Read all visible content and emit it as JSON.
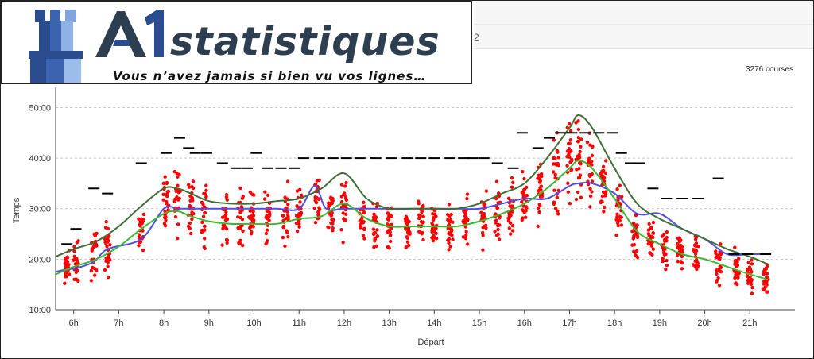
{
  "header": {
    "brand": "statistiques",
    "tagline": "Vous n’avez jamais si bien vu vos lignes…",
    "topbar_digit": "2"
  },
  "course_count": "3276 courses",
  "colors": {
    "points": "#ff0000",
    "blue_series": "#4f4fe6",
    "light_green_series": "#3cb832",
    "dark_green_series": "#3f6e33",
    "markers": "#000000",
    "logo_blue": "#2b4c8e"
  },
  "chart_data": {
    "type": "scatter",
    "xlabel": "Départ",
    "ylabel": "Temps",
    "x_ticks": [
      "6h",
      "7h",
      "8h",
      "9h",
      "10h",
      "11h",
      "12h",
      "13h",
      "14h",
      "15h",
      "16h",
      "17h",
      "18h",
      "19h",
      "20h",
      "21h"
    ],
    "y_ticks": [
      "10:00",
      "20:00",
      "30:00",
      "40:00",
      "50:00"
    ],
    "xlim": [
      5.6,
      22.0
    ],
    "ylim": [
      10,
      54
    ],
    "grid": "horizontal dashed",
    "scatter_clusters": [
      {
        "x": 5.85,
        "center": 18,
        "spread": 3
      },
      {
        "x": 6.05,
        "center": 19,
        "spread": 3.5
      },
      {
        "x": 6.45,
        "center": 21,
        "spread": 4
      },
      {
        "x": 6.75,
        "center": 22,
        "spread": 4
      },
      {
        "x": 7.5,
        "center": 26,
        "spread": 3
      },
      {
        "x": 8.05,
        "center": 31,
        "spread": 5
      },
      {
        "x": 8.3,
        "center": 32,
        "spread": 6
      },
      {
        "x": 8.6,
        "center": 31,
        "spread": 5
      },
      {
        "x": 8.9,
        "center": 29,
        "spread": 5
      },
      {
        "x": 9.35,
        "center": 28,
        "spread": 5
      },
      {
        "x": 9.7,
        "center": 28,
        "spread": 5
      },
      {
        "x": 9.95,
        "center": 28,
        "spread": 5
      },
      {
        "x": 10.3,
        "center": 28.5,
        "spread": 5
      },
      {
        "x": 10.7,
        "center": 29,
        "spread": 5
      },
      {
        "x": 11.0,
        "center": 30,
        "spread": 5
      },
      {
        "x": 11.4,
        "center": 31,
        "spread": 5
      },
      {
        "x": 11.7,
        "center": 29,
        "spread": 5
      },
      {
        "x": 12.0,
        "center": 30,
        "spread": 5
      },
      {
        "x": 12.4,
        "center": 28,
        "spread": 4
      },
      {
        "x": 12.7,
        "center": 27,
        "spread": 4
      },
      {
        "x": 13.0,
        "center": 27,
        "spread": 4
      },
      {
        "x": 13.4,
        "center": 26.5,
        "spread": 4
      },
      {
        "x": 13.7,
        "center": 27,
        "spread": 4
      },
      {
        "x": 14.0,
        "center": 26.5,
        "spread": 4
      },
      {
        "x": 14.35,
        "center": 26.5,
        "spread": 4
      },
      {
        "x": 14.7,
        "center": 27,
        "spread": 4
      },
      {
        "x": 15.1,
        "center": 28,
        "spread": 5
      },
      {
        "x": 15.4,
        "center": 29,
        "spread": 5
      },
      {
        "x": 15.7,
        "center": 30,
        "spread": 5
      },
      {
        "x": 16.0,
        "center": 32,
        "spread": 5
      },
      {
        "x": 16.35,
        "center": 34,
        "spread": 6
      },
      {
        "x": 16.7,
        "center": 37,
        "spread": 7
      },
      {
        "x": 17.0,
        "center": 39,
        "spread": 7
      },
      {
        "x": 17.2,
        "center": 40,
        "spread": 8
      },
      {
        "x": 17.45,
        "center": 38,
        "spread": 7
      },
      {
        "x": 17.75,
        "center": 35,
        "spread": 6
      },
      {
        "x": 18.1,
        "center": 29,
        "spread": 5
      },
      {
        "x": 18.45,
        "center": 25,
        "spread": 4
      },
      {
        "x": 18.8,
        "center": 24,
        "spread": 4
      },
      {
        "x": 19.1,
        "center": 23,
        "spread": 4
      },
      {
        "x": 19.45,
        "center": 21,
        "spread": 4
      },
      {
        "x": 19.8,
        "center": 21,
        "spread": 4
      },
      {
        "x": 20.3,
        "center": 19,
        "spread": 4
      },
      {
        "x": 20.7,
        "center": 18,
        "spread": 3
      },
      {
        "x": 21.0,
        "center": 17,
        "spread": 3
      },
      {
        "x": 21.35,
        "center": 16,
        "spread": 3
      }
    ],
    "series": [
      {
        "color": "#4f4fe6",
        "x": [
          5.6,
          5.85,
          6.05,
          6.45,
          6.75,
          7.5,
          8.0,
          8.3,
          8.6,
          9.0,
          9.5,
          10.0,
          10.5,
          11.0,
          11.35,
          11.6,
          12.0,
          12.5,
          13.0,
          13.5,
          14.0,
          14.5,
          15.0,
          15.5,
          16.0,
          16.5,
          17.0,
          17.2,
          17.5,
          18.0,
          18.5,
          19.0,
          19.5,
          20.0,
          20.5,
          21.0,
          21.35
        ],
        "y": [
          17.5,
          18,
          18.2,
          19.5,
          22,
          24,
          30,
          30,
          30,
          30,
          30,
          30,
          30,
          30,
          34.5,
          30,
          30,
          30,
          30,
          30,
          30,
          30,
          30,
          31,
          32,
          32,
          34.5,
          35,
          35,
          33,
          29,
          29,
          26,
          24,
          21,
          21,
          21
        ]
      },
      {
        "color": "#3cb832",
        "x": [
          5.6,
          6.0,
          6.5,
          7.0,
          7.5,
          8.0,
          8.3,
          8.6,
          9.0,
          9.5,
          10.0,
          10.5,
          11.0,
          11.5,
          12.0,
          12.5,
          13.0,
          13.5,
          14.0,
          14.5,
          15.0,
          15.5,
          16.0,
          16.5,
          17.0,
          17.2,
          17.5,
          18.0,
          18.5,
          19.0,
          19.5,
          20.0,
          20.5,
          21.0,
          21.4
        ],
        "y": [
          17,
          18.5,
          20,
          22.5,
          26,
          29,
          29.5,
          28.5,
          27.5,
          27,
          27,
          27,
          28,
          28.5,
          31,
          28,
          26.5,
          26.5,
          26.5,
          26.5,
          27.5,
          29,
          31,
          34,
          38,
          39.5,
          38,
          32,
          25.5,
          23,
          21,
          20,
          18.5,
          17,
          16
        ]
      },
      {
        "color": "#3f6e33",
        "x": [
          5.6,
          6.0,
          6.5,
          7.0,
          7.5,
          8.0,
          8.3,
          8.6,
          9.0,
          9.5,
          10.0,
          10.5,
          11.0,
          11.5,
          12.0,
          12.5,
          13.0,
          13.5,
          14.0,
          14.5,
          15.0,
          15.5,
          16.0,
          16.5,
          17.0,
          17.2,
          17.5,
          18.0,
          18.5,
          19.0,
          19.5,
          20.0,
          20.5,
          21.0,
          21.4
        ],
        "y": [
          20.5,
          22,
          23.5,
          26.5,
          30.5,
          34,
          34,
          33,
          31.5,
          31,
          31,
          31.5,
          32,
          34,
          37,
          32,
          30,
          30,
          30,
          30,
          31,
          33,
          35,
          40,
          46,
          48.5,
          46,
          38,
          31,
          28,
          26,
          24,
          22,
          20.5,
          19
        ]
      }
    ],
    "markers": [
      {
        "x": 5.85,
        "y": 23
      },
      {
        "x": 6.05,
        "y": 26
      },
      {
        "x": 6.45,
        "y": 34
      },
      {
        "x": 6.75,
        "y": 33
      },
      {
        "x": 7.5,
        "y": 39
      },
      {
        "x": 8.05,
        "y": 41
      },
      {
        "x": 8.35,
        "y": 44
      },
      {
        "x": 8.55,
        "y": 42
      },
      {
        "x": 8.7,
        "y": 41
      },
      {
        "x": 8.95,
        "y": 41
      },
      {
        "x": 9.3,
        "y": 39
      },
      {
        "x": 9.6,
        "y": 38
      },
      {
        "x": 9.85,
        "y": 38
      },
      {
        "x": 10.05,
        "y": 41
      },
      {
        "x": 10.3,
        "y": 38
      },
      {
        "x": 10.6,
        "y": 38
      },
      {
        "x": 10.9,
        "y": 38
      },
      {
        "x": 11.1,
        "y": 40
      },
      {
        "x": 11.45,
        "y": 40
      },
      {
        "x": 11.75,
        "y": 40
      },
      {
        "x": 12.05,
        "y": 40
      },
      {
        "x": 12.35,
        "y": 40
      },
      {
        "x": 12.7,
        "y": 40
      },
      {
        "x": 13.05,
        "y": 40
      },
      {
        "x": 13.4,
        "y": 40
      },
      {
        "x": 13.7,
        "y": 40
      },
      {
        "x": 14.0,
        "y": 40
      },
      {
        "x": 14.35,
        "y": 40
      },
      {
        "x": 14.65,
        "y": 40
      },
      {
        "x": 14.85,
        "y": 40
      },
      {
        "x": 15.1,
        "y": 40
      },
      {
        "x": 15.4,
        "y": 39
      },
      {
        "x": 15.75,
        "y": 38
      },
      {
        "x": 15.95,
        "y": 45
      },
      {
        "x": 16.3,
        "y": 42
      },
      {
        "x": 16.55,
        "y": 44
      },
      {
        "x": 16.8,
        "y": 45
      },
      {
        "x": 17.05,
        "y": 45
      },
      {
        "x": 17.35,
        "y": 45
      },
      {
        "x": 17.65,
        "y": 45
      },
      {
        "x": 17.95,
        "y": 45
      },
      {
        "x": 18.15,
        "y": 41
      },
      {
        "x": 18.35,
        "y": 39
      },
      {
        "x": 18.55,
        "y": 39
      },
      {
        "x": 18.85,
        "y": 34
      },
      {
        "x": 19.15,
        "y": 32
      },
      {
        "x": 19.5,
        "y": 32
      },
      {
        "x": 19.85,
        "y": 32
      },
      {
        "x": 20.3,
        "y": 36
      },
      {
        "x": 20.65,
        "y": 21
      },
      {
        "x": 20.95,
        "y": 21
      },
      {
        "x": 21.35,
        "y": 21
      }
    ]
  }
}
